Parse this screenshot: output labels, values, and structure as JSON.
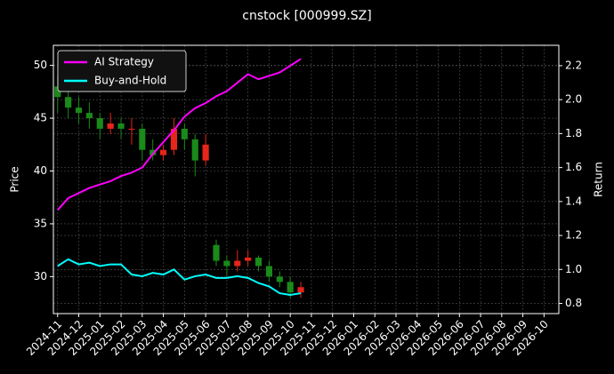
{
  "chart_data": {
    "type": "candlestick",
    "title": "cnstock [000999.SZ]",
    "ylabel": "Price",
    "y2label": "Return",
    "x": [
      0,
      0.5,
      1,
      1.5,
      2,
      2.5,
      3,
      3.5,
      4,
      4.5,
      5,
      5.5,
      6,
      6.5,
      7,
      7.5,
      8,
      8.5,
      9,
      9.5,
      10,
      10.5,
      11,
      11.5
    ],
    "open": [
      48,
      47,
      46,
      45.5,
      45,
      44,
      44.5,
      44,
      44,
      42,
      41.5,
      42,
      44,
      43,
      41,
      33,
      31.5,
      31,
      31.5,
      31.8,
      31,
      30,
      29.5,
      28.5
    ],
    "high": [
      49,
      47.5,
      47,
      46.5,
      45.5,
      45.5,
      45,
      45,
      44.5,
      43,
      42.5,
      45,
      44.5,
      43.5,
      43.5,
      33.5,
      32,
      32.5,
      32.5,
      32,
      31.5,
      30.5,
      30,
      29.5
    ],
    "low": [
      45.5,
      45,
      44.5,
      44,
      43,
      43.5,
      43,
      42.5,
      41,
      41,
      41,
      41.5,
      42,
      39.5,
      40.5,
      31,
      30,
      30.5,
      31,
      30.5,
      29.5,
      29,
      28,
      28
    ],
    "close": [
      47,
      46,
      45.5,
      45,
      44,
      44.5,
      44,
      44,
      42,
      41.5,
      42,
      44,
      43,
      41,
      42.5,
      31.5,
      31,
      31.5,
      31.8,
      31,
      30,
      29.5,
      28.5,
      29
    ],
    "up_color": "#e8251b",
    "down_color": "#1a8a1a",
    "series": [
      {
        "name": "AI Strategy",
        "color": "#ff00ff",
        "axis": "y2",
        "values": [
          1.35,
          1.42,
          1.45,
          1.48,
          1.5,
          1.52,
          1.55,
          1.57,
          1.6,
          1.68,
          1.75,
          1.82,
          1.9,
          1.95,
          1.98,
          2.02,
          2.05,
          2.1,
          2.15,
          2.12,
          2.14,
          2.16,
          2.2,
          2.24
        ]
      },
      {
        "name": "Buy-and-Hold",
        "color": "#00ffff",
        "axis": "y2",
        "values": [
          1.02,
          1.06,
          1.03,
          1.04,
          1.02,
          1.03,
          1.03,
          0.97,
          0.96,
          0.98,
          0.97,
          1.0,
          0.94,
          0.96,
          0.97,
          0.95,
          0.95,
          0.96,
          0.95,
          0.92,
          0.9,
          0.86,
          0.85,
          0.86
        ]
      }
    ],
    "xlim": [
      -0.2,
      23.7
    ],
    "xticks": [
      {
        "value": 0,
        "label": "2024-11"
      },
      {
        "value": 1,
        "label": "2024-12"
      },
      {
        "value": 2,
        "label": "2025-01"
      },
      {
        "value": 3,
        "label": "2025-02"
      },
      {
        "value": 4,
        "label": "2025-03"
      },
      {
        "value": 5,
        "label": "2025-04"
      },
      {
        "value": 6,
        "label": "2025-05"
      },
      {
        "value": 7,
        "label": "2025-06"
      },
      {
        "value": 8,
        "label": "2025-07"
      },
      {
        "value": 9,
        "label": "2025-08"
      },
      {
        "value": 10,
        "label": "2025-09"
      },
      {
        "value": 11,
        "label": "2025-10"
      },
      {
        "value": 12,
        "label": "2025-11"
      },
      {
        "value": 13,
        "label": "2025-12"
      },
      {
        "value": 14,
        "label": "2026-01"
      },
      {
        "value": 15,
        "label": "2026-02"
      },
      {
        "value": 16,
        "label": "2026-03"
      },
      {
        "value": 17,
        "label": "2026-04"
      },
      {
        "value": 18,
        "label": "2026-05"
      },
      {
        "value": 19,
        "label": "2026-06"
      },
      {
        "value": 20,
        "label": "2026-07"
      },
      {
        "value": 21,
        "label": "2026-08"
      },
      {
        "value": 22,
        "label": "2026-09"
      },
      {
        "value": 23,
        "label": "2026-10"
      }
    ],
    "ylim": [
      26.5,
      51.9
    ],
    "yticks": [
      30,
      35,
      40,
      45,
      50
    ],
    "y2lim": [
      0.74,
      2.32
    ],
    "y2ticks": [
      0.8,
      {
        "value": 1,
        "label": "1.0"
      },
      1.2,
      1.4,
      1.6,
      1.8,
      {
        "value": 2,
        "label": "2.0"
      },
      2.2
    ],
    "grid": true,
    "legend": "upper left"
  }
}
